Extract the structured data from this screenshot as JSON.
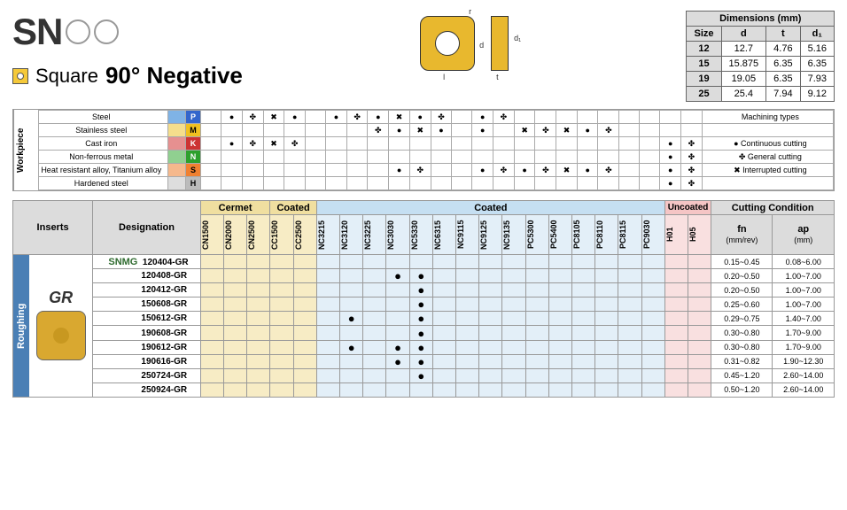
{
  "title_prefix": "SN",
  "subtitle_shape": "Square",
  "subtitle_angle": "90° Negative",
  "dimensions": {
    "header": "Dimensions (mm)",
    "columns": [
      "Size",
      "d",
      "t",
      "d₁"
    ],
    "rows": [
      [
        "12",
        "12.7",
        "4.76",
        "5.16"
      ],
      [
        "15",
        "15.875",
        "6.35",
        "6.35"
      ],
      [
        "19",
        "19.05",
        "6.35",
        "7.93"
      ],
      [
        "25",
        "25.4",
        "7.94",
        "9.12"
      ]
    ]
  },
  "workpiece": {
    "side_label": "Workpiece",
    "machining_types_header": "Machining types",
    "materials": [
      {
        "name": "Steel",
        "flag": "P",
        "flag_bg": "#3366cc",
        "flag_fg": "#fff",
        "color": "#7fb3e6"
      },
      {
        "name": "Stainless steel",
        "flag": "M",
        "flag_bg": "#f0c020",
        "flag_fg": "#000",
        "color": "#f5de8c"
      },
      {
        "name": "Cast iron",
        "flag": "K",
        "flag_bg": "#cc3333",
        "flag_fg": "#fff",
        "color": "#e69090"
      },
      {
        "name": "Non-ferrous metal",
        "flag": "N",
        "flag_bg": "#2ca02c",
        "flag_fg": "#fff",
        "color": "#90d090"
      },
      {
        "name": "Heat resistant alloy, Titanium alloy",
        "flag": "S",
        "flag_bg": "#f08030",
        "flag_fg": "#000",
        "color": "#f5b88c"
      },
      {
        "name": "Hardened steel",
        "flag": "H",
        "flag_bg": "#bbb",
        "flag_fg": "#000",
        "color": "#ddd"
      }
    ],
    "legend": [
      {
        "sym": "●",
        "text": "Continuous cutting"
      },
      {
        "sym": "✤",
        "text": "General cutting"
      },
      {
        "sym": "✖",
        "text": "Interrupted cutting"
      }
    ]
  },
  "main": {
    "inserts_hdr": "Inserts",
    "designation_hdr": "Designation",
    "cermet_hdr": "Cermet",
    "coated1_hdr": "Coated",
    "coated2_hdr": "Coated",
    "uncoated_hdr": "Uncoated",
    "cutting_hdr": "Cutting Condition",
    "fn_hdr": "fn",
    "fn_unit": "(mm/rev)",
    "ap_hdr": "ap",
    "ap_unit": "(mm)",
    "side_tab": "Roughing",
    "gr_label": "GR",
    "snmg_label": "SNMG",
    "cermet_grades": [
      "CN1500",
      "CN2000",
      "CN2500"
    ],
    "coated1_grades": [
      "CC1500",
      "CC2500"
    ],
    "coated2_grades": [
      "NC3215",
      "NC3120",
      "NC3225",
      "NC3030",
      "NC5330",
      "NC6315",
      "NC9115",
      "NC9125",
      "NC9135",
      "PC5300",
      "PC5400",
      "PC8105",
      "PC8110",
      "PC8115",
      "PC9030"
    ],
    "uncoated_grades": [
      "H01",
      "H05"
    ],
    "rows": [
      {
        "d": "120404-GR",
        "dots": {},
        "fn": "0.15~0.45",
        "ap": "0.08~6.00"
      },
      {
        "d": "120408-GR",
        "dots": {
          "NC3030": "●",
          "NC5330": "●"
        },
        "fn": "0.20~0.50",
        "ap": "1.00~7.00"
      },
      {
        "d": "120412-GR",
        "dots": {
          "NC5330": "●"
        },
        "fn": "0.20~0.50",
        "ap": "1.00~7.00"
      },
      {
        "d": "150608-GR",
        "dots": {
          "NC5330": "●"
        },
        "fn": "0.25~0.60",
        "ap": "1.00~7.00"
      },
      {
        "d": "150612-GR",
        "dots": {
          "NC3120": "●",
          "NC5330": "●"
        },
        "fn": "0.29~0.75",
        "ap": "1.40~7.00"
      },
      {
        "d": "190608-GR",
        "dots": {
          "NC5330": "●"
        },
        "fn": "0.30~0.80",
        "ap": "1.70~9.00"
      },
      {
        "d": "190612-GR",
        "dots": {
          "NC3120": "●",
          "NC3030": "●",
          "NC5330": "●"
        },
        "fn": "0.30~0.80",
        "ap": "1.70~9.00"
      },
      {
        "d": "190616-GR",
        "dots": {
          "NC3030": "●",
          "NC5330": "●"
        },
        "fn": "0.31~0.82",
        "ap": "1.90~12.30"
      },
      {
        "d": "250724-GR",
        "dots": {
          "NC5330": "●"
        },
        "fn": "0.45~1.20",
        "ap": "2.60~14.00"
      },
      {
        "d": "250924-GR",
        "dots": {},
        "fn": "0.50~1.20",
        "ap": "2.60~14.00"
      }
    ]
  },
  "workpiece_matrix_cols": 22,
  "workpiece_marks": {
    "0": {
      "1": "●",
      "2": "✤",
      "3": "✖",
      "4": "●",
      "6": "●",
      "7": "✤",
      "8": "●",
      "9": "✖",
      "10": "●",
      "11": "✤",
      "13": "●",
      "14": "✤"
    },
    "1": {
      "8": "✤",
      "9": "●",
      "10": "✖",
      "11": "●",
      "13": "●",
      "15": "✖",
      "16": "✤",
      "17": "✖",
      "18": "●",
      "19": "✤"
    },
    "2": {
      "1": "●",
      "2": "✤",
      "3": "✖",
      "4": "✤"
    },
    "3": {},
    "4": {
      "9": "●",
      "10": "✤",
      "13": "●",
      "14": "✤",
      "15": "●",
      "16": "✤",
      "17": "✖",
      "18": "●",
      "19": "✤"
    },
    "5": {}
  },
  "right_workpiece_marks": {
    "0": {},
    "1": {},
    "2": {
      "0": "●",
      "1": "✤"
    },
    "3": {
      "0": "●",
      "1": "✤"
    },
    "4": {
      "0": "●",
      "1": "✤"
    },
    "5": {
      "0": "●",
      "1": "✤"
    }
  }
}
